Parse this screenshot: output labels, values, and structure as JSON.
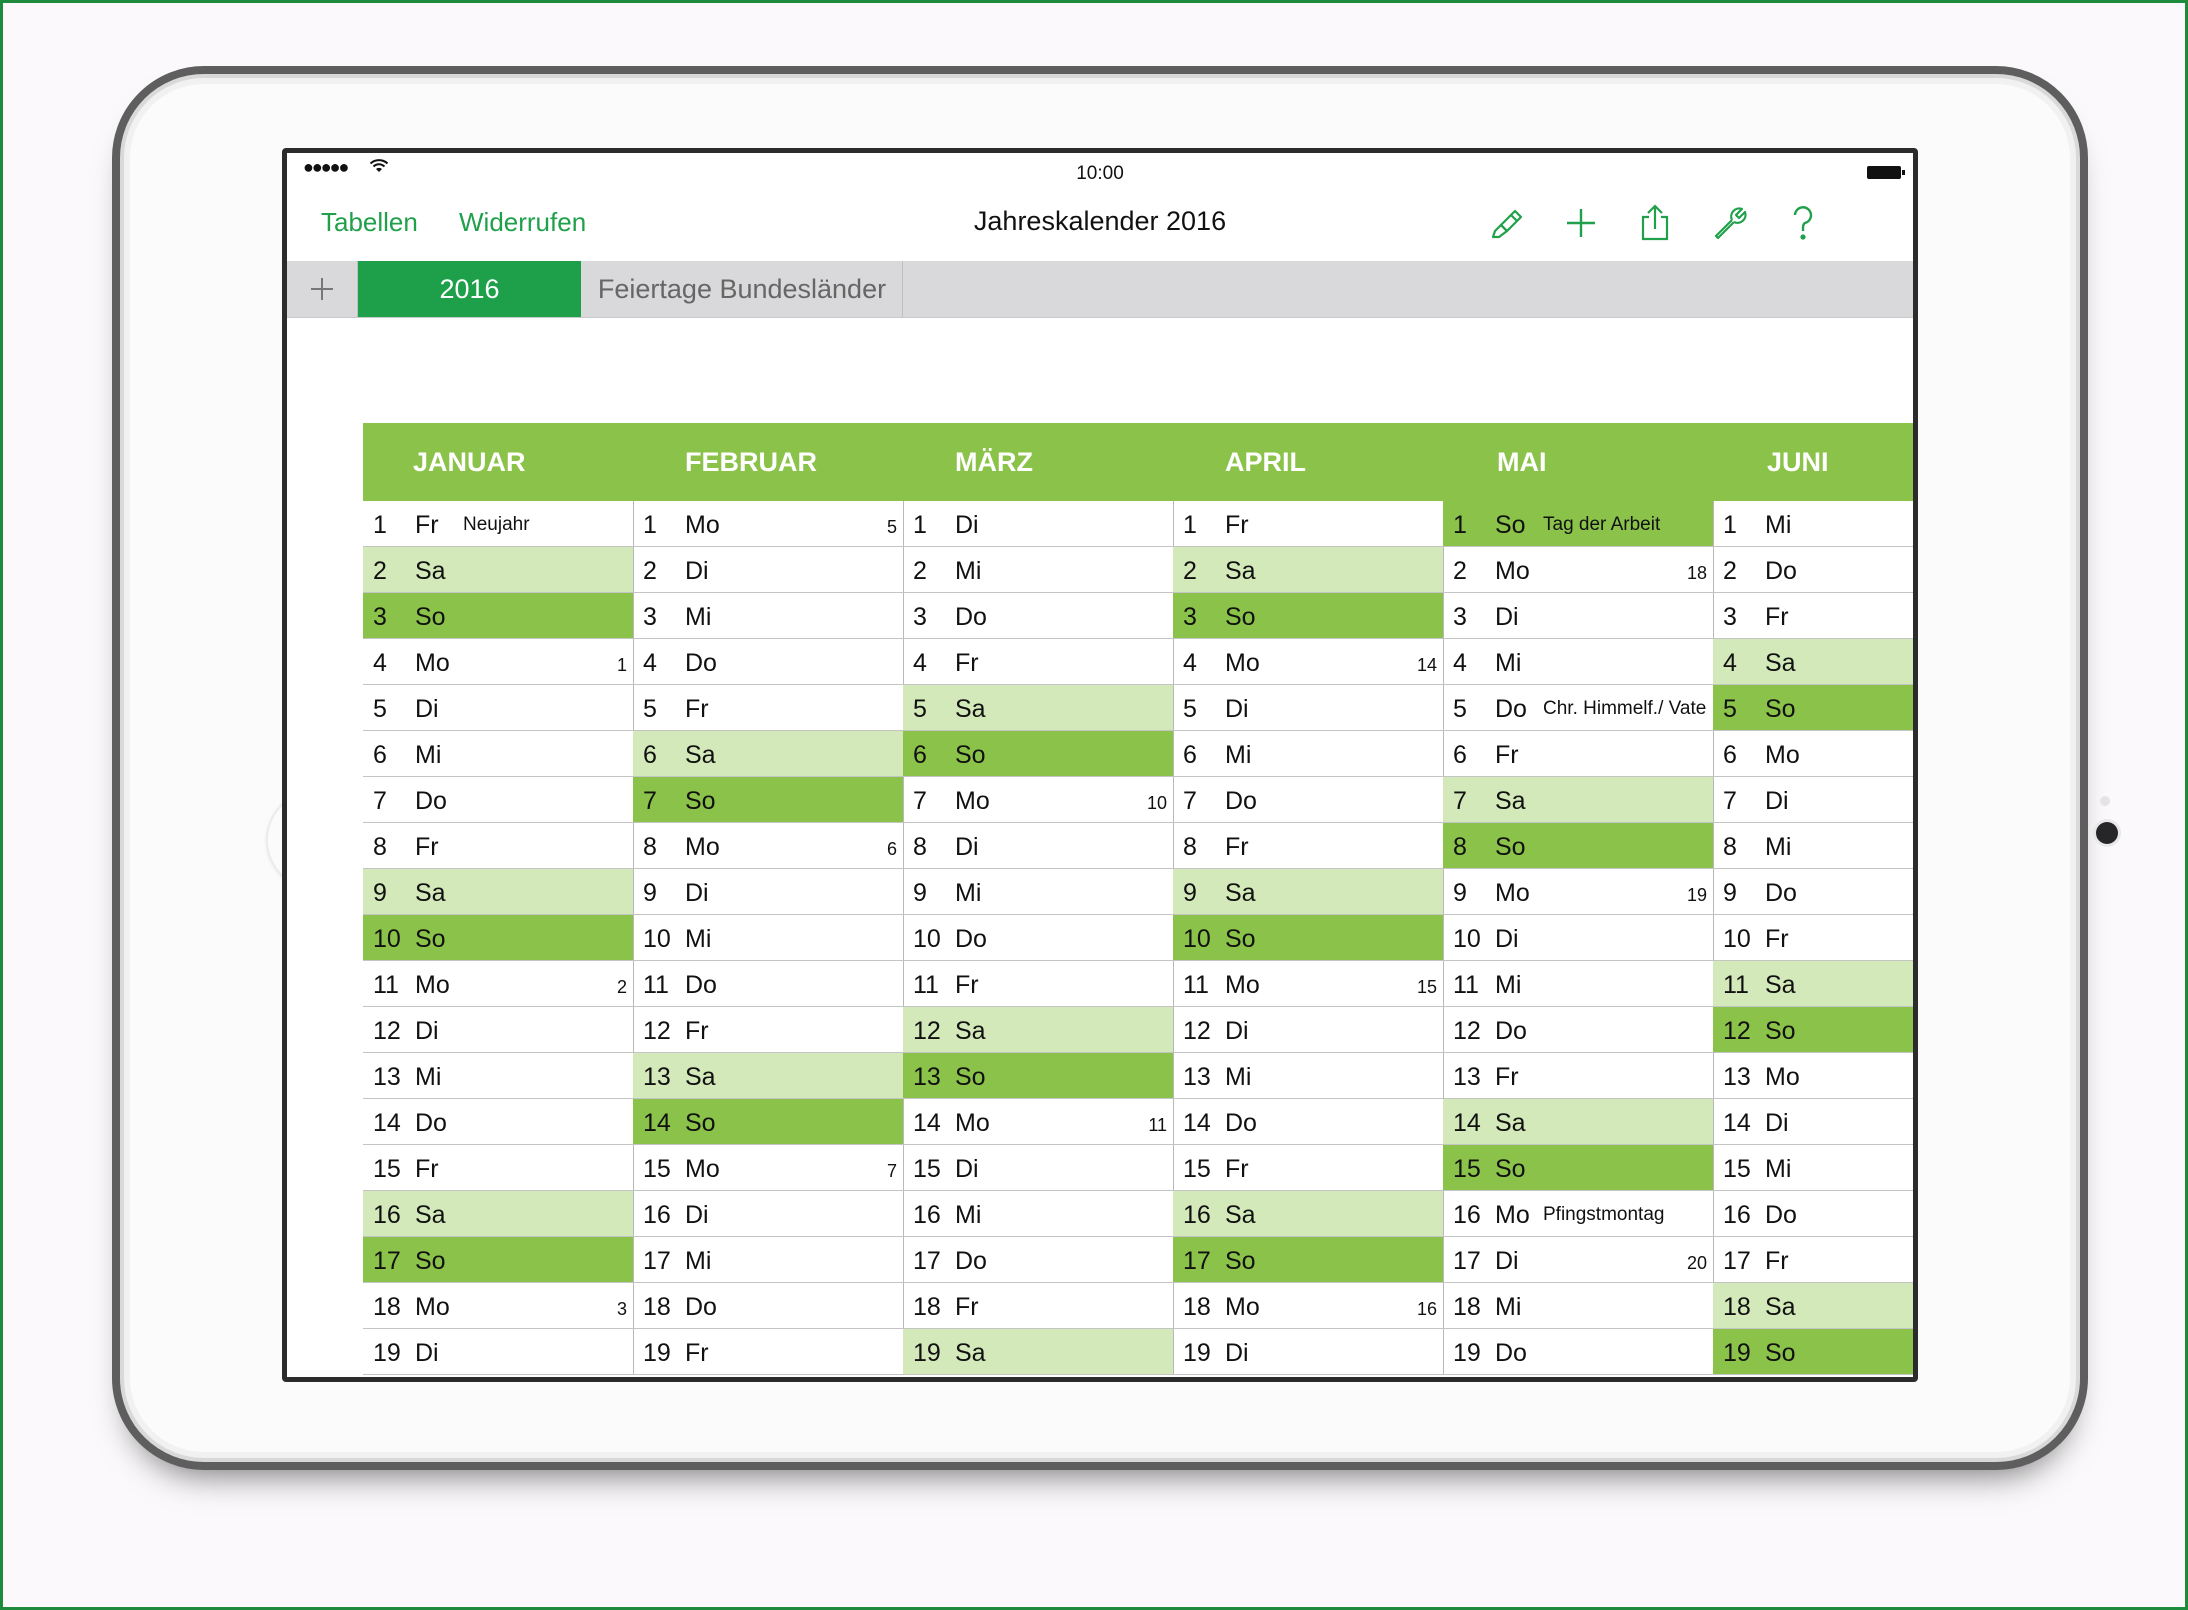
{
  "status_bar": {
    "signal": "●●●●●",
    "wifi": "wifi-icon",
    "time": "10:00",
    "battery": "battery-icon"
  },
  "nav": {
    "left_buttons": [
      "Tabellen",
      "Widerrufen"
    ],
    "title": "Jahreskalender 2016",
    "icons": [
      "brush-icon",
      "plus-icon",
      "share-icon",
      "wrench-icon",
      "help-icon"
    ],
    "accent_color": "#21a04b"
  },
  "tabs": {
    "add": "+",
    "items": [
      {
        "label": "2016",
        "active": true
      },
      {
        "label": "Feiertage Bundesländer",
        "active": false
      }
    ]
  },
  "colors": {
    "header": "#8bc34a",
    "saturday": "#d3e9b9",
    "sunday": "#8bc34a"
  },
  "calendar": {
    "months": [
      {
        "name": "JANUAR",
        "days": [
          {
            "d": "1",
            "wd": "Fr",
            "hol": "Neujahr"
          },
          {
            "d": "2",
            "wd": "Sa"
          },
          {
            "d": "3",
            "wd": "So"
          },
          {
            "d": "4",
            "wd": "Mo",
            "wk": "1"
          },
          {
            "d": "5",
            "wd": "Di"
          },
          {
            "d": "6",
            "wd": "Mi"
          },
          {
            "d": "7",
            "wd": "Do"
          },
          {
            "d": "8",
            "wd": "Fr"
          },
          {
            "d": "9",
            "wd": "Sa"
          },
          {
            "d": "10",
            "wd": "So"
          },
          {
            "d": "11",
            "wd": "Mo",
            "wk": "2"
          },
          {
            "d": "12",
            "wd": "Di"
          },
          {
            "d": "13",
            "wd": "Mi"
          },
          {
            "d": "14",
            "wd": "Do"
          },
          {
            "d": "15",
            "wd": "Fr"
          },
          {
            "d": "16",
            "wd": "Sa"
          },
          {
            "d": "17",
            "wd": "So"
          },
          {
            "d": "18",
            "wd": "Mo",
            "wk": "3"
          },
          {
            "d": "19",
            "wd": "Di"
          }
        ]
      },
      {
        "name": "FEBRUAR",
        "days": [
          {
            "d": "1",
            "wd": "Mo",
            "wk": "5"
          },
          {
            "d": "2",
            "wd": "Di"
          },
          {
            "d": "3",
            "wd": "Mi"
          },
          {
            "d": "4",
            "wd": "Do"
          },
          {
            "d": "5",
            "wd": "Fr"
          },
          {
            "d": "6",
            "wd": "Sa"
          },
          {
            "d": "7",
            "wd": "So"
          },
          {
            "d": "8",
            "wd": "Mo",
            "wk": "6"
          },
          {
            "d": "9",
            "wd": "Di"
          },
          {
            "d": "10",
            "wd": "Mi"
          },
          {
            "d": "11",
            "wd": "Do"
          },
          {
            "d": "12",
            "wd": "Fr"
          },
          {
            "d": "13",
            "wd": "Sa"
          },
          {
            "d": "14",
            "wd": "So"
          },
          {
            "d": "15",
            "wd": "Mo",
            "wk": "7"
          },
          {
            "d": "16",
            "wd": "Di"
          },
          {
            "d": "17",
            "wd": "Mi"
          },
          {
            "d": "18",
            "wd": "Do"
          },
          {
            "d": "19",
            "wd": "Fr"
          }
        ]
      },
      {
        "name": "MÄRZ",
        "days": [
          {
            "d": "1",
            "wd": "Di"
          },
          {
            "d": "2",
            "wd": "Mi"
          },
          {
            "d": "3",
            "wd": "Do"
          },
          {
            "d": "4",
            "wd": "Fr"
          },
          {
            "d": "5",
            "wd": "Sa"
          },
          {
            "d": "6",
            "wd": "So"
          },
          {
            "d": "7",
            "wd": "Mo",
            "wk": "10"
          },
          {
            "d": "8",
            "wd": "Di"
          },
          {
            "d": "9",
            "wd": "Mi"
          },
          {
            "d": "10",
            "wd": "Do"
          },
          {
            "d": "11",
            "wd": "Fr"
          },
          {
            "d": "12",
            "wd": "Sa"
          },
          {
            "d": "13",
            "wd": "So"
          },
          {
            "d": "14",
            "wd": "Mo",
            "wk": "11"
          },
          {
            "d": "15",
            "wd": "Di"
          },
          {
            "d": "16",
            "wd": "Mi"
          },
          {
            "d": "17",
            "wd": "Do"
          },
          {
            "d": "18",
            "wd": "Fr"
          },
          {
            "d": "19",
            "wd": "Sa"
          }
        ]
      },
      {
        "name": "APRIL",
        "days": [
          {
            "d": "1",
            "wd": "Fr"
          },
          {
            "d": "2",
            "wd": "Sa"
          },
          {
            "d": "3",
            "wd": "So"
          },
          {
            "d": "4",
            "wd": "Mo",
            "wk": "14"
          },
          {
            "d": "5",
            "wd": "Di"
          },
          {
            "d": "6",
            "wd": "Mi"
          },
          {
            "d": "7",
            "wd": "Do"
          },
          {
            "d": "8",
            "wd": "Fr"
          },
          {
            "d": "9",
            "wd": "Sa"
          },
          {
            "d": "10",
            "wd": "So"
          },
          {
            "d": "11",
            "wd": "Mo",
            "wk": "15"
          },
          {
            "d": "12",
            "wd": "Di"
          },
          {
            "d": "13",
            "wd": "Mi"
          },
          {
            "d": "14",
            "wd": "Do"
          },
          {
            "d": "15",
            "wd": "Fr"
          },
          {
            "d": "16",
            "wd": "Sa"
          },
          {
            "d": "17",
            "wd": "So"
          },
          {
            "d": "18",
            "wd": "Mo",
            "wk": "16"
          },
          {
            "d": "19",
            "wd": "Di"
          }
        ]
      },
      {
        "name": "MAI",
        "days": [
          {
            "d": "1",
            "wd": "So",
            "hol": "Tag der Arbeit"
          },
          {
            "d": "2",
            "wd": "Mo",
            "wk": "18"
          },
          {
            "d": "3",
            "wd": "Di"
          },
          {
            "d": "4",
            "wd": "Mi"
          },
          {
            "d": "5",
            "wd": "Do",
            "hol": "Chr. Himmelf./ Vate"
          },
          {
            "d": "6",
            "wd": "Fr"
          },
          {
            "d": "7",
            "wd": "Sa"
          },
          {
            "d": "8",
            "wd": "So"
          },
          {
            "d": "9",
            "wd": "Mo",
            "wk": "19"
          },
          {
            "d": "10",
            "wd": "Di"
          },
          {
            "d": "11",
            "wd": "Mi"
          },
          {
            "d": "12",
            "wd": "Do"
          },
          {
            "d": "13",
            "wd": "Fr"
          },
          {
            "d": "14",
            "wd": "Sa"
          },
          {
            "d": "15",
            "wd": "So"
          },
          {
            "d": "16",
            "wd": "Mo",
            "hol": "Pfingstmontag"
          },
          {
            "d": "17",
            "wd": "Di",
            "wk": "20"
          },
          {
            "d": "18",
            "wd": "Mi"
          },
          {
            "d": "19",
            "wd": "Do"
          }
        ]
      },
      {
        "name": "JUNI",
        "days": [
          {
            "d": "1",
            "wd": "Mi"
          },
          {
            "d": "2",
            "wd": "Do"
          },
          {
            "d": "3",
            "wd": "Fr"
          },
          {
            "d": "4",
            "wd": "Sa"
          },
          {
            "d": "5",
            "wd": "So"
          },
          {
            "d": "6",
            "wd": "Mo"
          },
          {
            "d": "7",
            "wd": "Di"
          },
          {
            "d": "8",
            "wd": "Mi"
          },
          {
            "d": "9",
            "wd": "Do"
          },
          {
            "d": "10",
            "wd": "Fr"
          },
          {
            "d": "11",
            "wd": "Sa"
          },
          {
            "d": "12",
            "wd": "So"
          },
          {
            "d": "13",
            "wd": "Mo"
          },
          {
            "d": "14",
            "wd": "Di"
          },
          {
            "d": "15",
            "wd": "Mi"
          },
          {
            "d": "16",
            "wd": "Do"
          },
          {
            "d": "17",
            "wd": "Fr"
          },
          {
            "d": "18",
            "wd": "Sa"
          },
          {
            "d": "19",
            "wd": "So"
          }
        ]
      }
    ]
  }
}
